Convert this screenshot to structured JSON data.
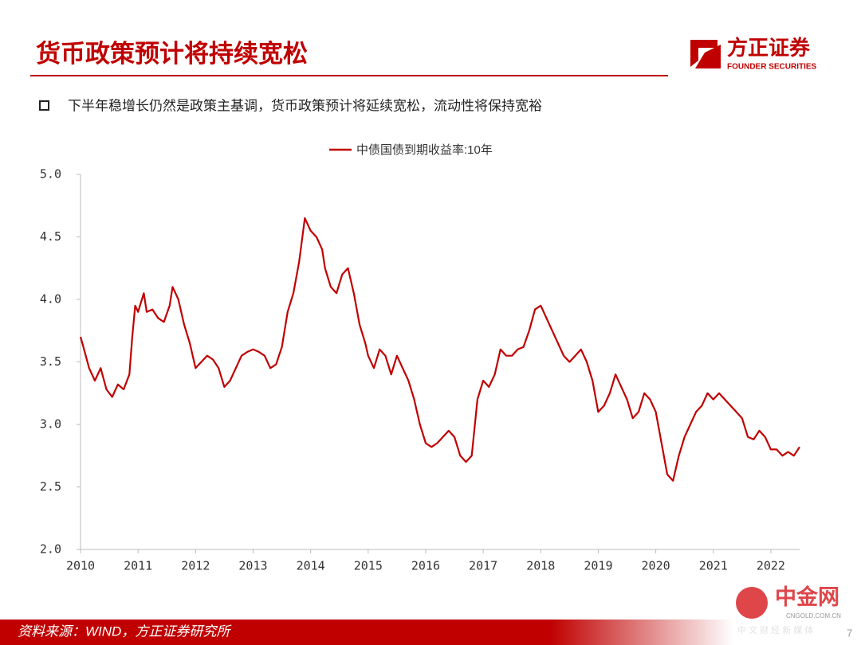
{
  "header": {
    "title": "货币政策预计将持续宽松"
  },
  "logo": {
    "name": "方正证券",
    "subtitle": "FOUNDER SECURITIES"
  },
  "bullet": "下半年稳增长仍然是政策主基调，货币政策预计将延续宽松，流动性将保持宽裕",
  "footer": {
    "source": "资料来源：WIND，方正证券研究所",
    "page": "7"
  },
  "watermark": {
    "name": "中金网",
    "site": "CNGOLD.COM.CN",
    "tagline": "中 文 财 经 新 媒 体"
  },
  "chart_data": {
    "type": "line",
    "x": [
      2010.0,
      2010.05,
      2010.15,
      2010.25,
      2010.35,
      2010.45,
      2010.55,
      2010.65,
      2010.75,
      2010.85,
      2010.9,
      2010.95,
      2011.0,
      2011.1,
      2011.15,
      2011.25,
      2011.35,
      2011.45,
      2011.55,
      2011.6,
      2011.7,
      2011.8,
      2011.9,
      2012.0,
      2012.1,
      2012.2,
      2012.3,
      2012.4,
      2012.5,
      2012.6,
      2012.7,
      2012.8,
      2012.9,
      2013.0,
      2013.1,
      2013.2,
      2013.3,
      2013.4,
      2013.5,
      2013.6,
      2013.7,
      2013.8,
      2013.9,
      2014.0,
      2014.1,
      2014.2,
      2014.25,
      2014.35,
      2014.45,
      2014.55,
      2014.65,
      2014.75,
      2014.85,
      2014.95,
      2015.0,
      2015.1,
      2015.2,
      2015.3,
      2015.4,
      2015.5,
      2015.6,
      2015.7,
      2015.8,
      2015.9,
      2016.0,
      2016.1,
      2016.2,
      2016.3,
      2016.4,
      2016.5,
      2016.6,
      2016.7,
      2016.8,
      2016.9,
      2017.0,
      2017.1,
      2017.2,
      2017.3,
      2017.4,
      2017.5,
      2017.6,
      2017.7,
      2017.8,
      2017.9,
      2018.0,
      2018.1,
      2018.2,
      2018.3,
      2018.4,
      2018.5,
      2018.6,
      2018.7,
      2018.8,
      2018.9,
      2019.0,
      2019.1,
      2019.2,
      2019.3,
      2019.4,
      2019.5,
      2019.6,
      2019.7,
      2019.8,
      2019.9,
      2020.0,
      2020.1,
      2020.2,
      2020.3,
      2020.4,
      2020.5,
      2020.6,
      2020.7,
      2020.8,
      2020.9,
      2021.0,
      2021.1,
      2021.2,
      2021.3,
      2021.4,
      2021.5,
      2021.6,
      2021.7,
      2021.8,
      2021.9,
      2022.0,
      2022.1,
      2022.2,
      2022.3,
      2022.4,
      2022.5
    ],
    "series": [
      {
        "name": "中债国债到期收益率:10年",
        "color": "#c00000",
        "values": [
          3.7,
          3.62,
          3.45,
          3.35,
          3.45,
          3.28,
          3.22,
          3.32,
          3.28,
          3.4,
          3.7,
          3.95,
          3.9,
          4.05,
          3.9,
          3.92,
          3.85,
          3.82,
          3.95,
          4.1,
          4.0,
          3.8,
          3.65,
          3.45,
          3.5,
          3.55,
          3.52,
          3.45,
          3.3,
          3.35,
          3.45,
          3.55,
          3.58,
          3.6,
          3.58,
          3.55,
          3.45,
          3.48,
          3.62,
          3.9,
          4.05,
          4.3,
          4.65,
          4.55,
          4.5,
          4.4,
          4.25,
          4.1,
          4.05,
          4.2,
          4.25,
          4.05,
          3.8,
          3.65,
          3.55,
          3.45,
          3.6,
          3.55,
          3.4,
          3.55,
          3.45,
          3.35,
          3.2,
          3.0,
          2.85,
          2.82,
          2.85,
          2.9,
          2.95,
          2.9,
          2.75,
          2.7,
          2.75,
          3.2,
          3.35,
          3.3,
          3.4,
          3.6,
          3.55,
          3.55,
          3.6,
          3.62,
          3.75,
          3.92,
          3.95,
          3.85,
          3.75,
          3.65,
          3.55,
          3.5,
          3.55,
          3.6,
          3.5,
          3.35,
          3.1,
          3.15,
          3.25,
          3.4,
          3.3,
          3.2,
          3.05,
          3.1,
          3.25,
          3.2,
          3.1,
          2.85,
          2.6,
          2.55,
          2.75,
          2.9,
          3.0,
          3.1,
          3.15,
          3.25,
          3.2,
          3.25,
          3.2,
          3.15,
          3.1,
          3.05,
          2.9,
          2.88,
          2.95,
          2.9,
          2.8,
          2.8,
          2.75,
          2.78,
          2.75,
          2.82
        ]
      }
    ],
    "xlim": [
      2010,
      2022.5
    ],
    "xticks": [
      2010,
      2011,
      2012,
      2013,
      2014,
      2015,
      2016,
      2017,
      2018,
      2019,
      2020,
      2021,
      2022
    ],
    "ylim": [
      2,
      5
    ],
    "yticks": [
      {
        "value": 2,
        "label": "2.0"
      },
      2.5,
      {
        "value": 3,
        "label": "3.0"
      },
      3.5,
      {
        "value": 4,
        "label": "4.0"
      },
      4.5,
      {
        "value": 5,
        "label": "5.0"
      }
    ],
    "legend": "top"
  }
}
